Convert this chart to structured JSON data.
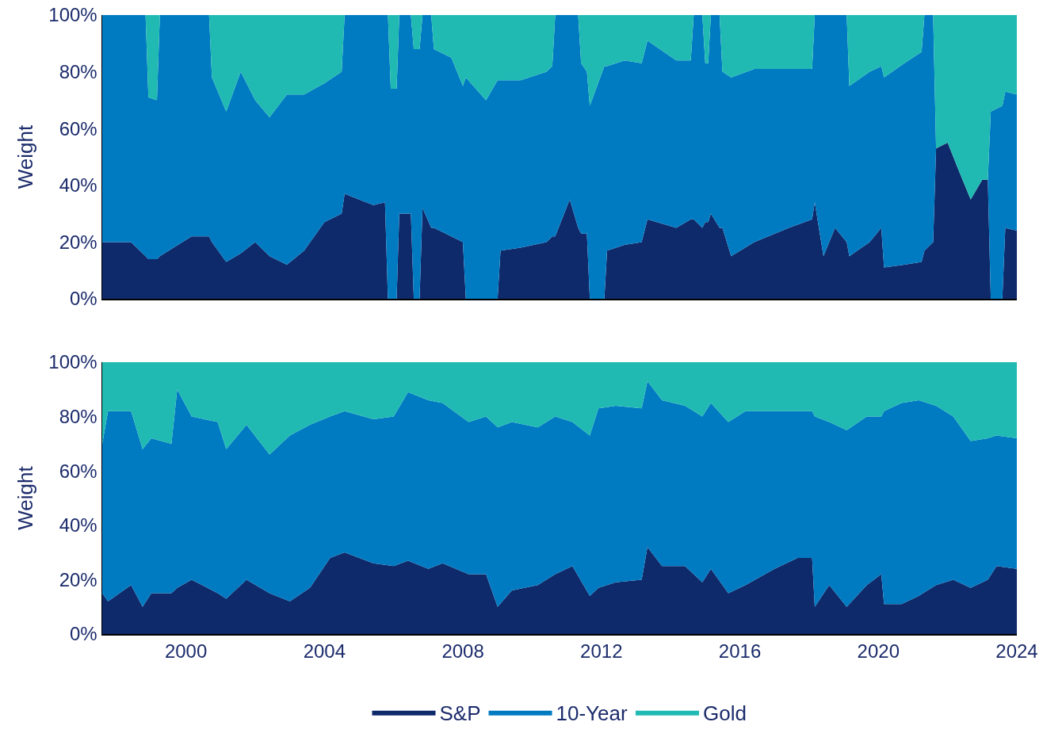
{
  "chart_data": [
    {
      "type": "area",
      "stacked": true,
      "ylabel": "Weight",
      "legend": false,
      "tick_labels": "y",
      "x": [
        "1997-08",
        "1998-06",
        "1998-11",
        "1998-12",
        "1999-03",
        "1999-04",
        "2000-03",
        "2000-09",
        "2000-10",
        "2001-03",
        "2001-08",
        "2002-01",
        "2002-06",
        "2002-12",
        "2003-06",
        "2004-01",
        "2004-07",
        "2004-08",
        "2005-06",
        "2005-10",
        "2005-11",
        "2005-12",
        "2006-02",
        "2006-03",
        "2006-07",
        "2006-08",
        "2006-10",
        "2006-11",
        "2007-02",
        "2007-03",
        "2007-09",
        "2008-01",
        "2008-02",
        "2008-09",
        "2009-01",
        "2009-02",
        "2009-09",
        "2010-06",
        "2010-08",
        "2010-09",
        "2011-02",
        "2011-05",
        "2011-06",
        "2011-08",
        "2011-09",
        "2012-02",
        "2012-03",
        "2012-09",
        "2013-03",
        "2013-05",
        "2014-03",
        "2014-08",
        "2014-09",
        "2014-12",
        "2015-01",
        "2015-02",
        "2015-03",
        "2015-06",
        "2015-07",
        "2015-10",
        "2016-06",
        "2017-06",
        "2018-02",
        "2018-03",
        "2018-06",
        "2018-10",
        "2019-02",
        "2019-03",
        "2019-10",
        "2020-02",
        "2020-03",
        "2020-10",
        "2021-04",
        "2021-05",
        "2021-08",
        "2021-09",
        "2022-01",
        "2022-05",
        "2022-09",
        "2023-01",
        "2023-03",
        "2023-04",
        "2023-08",
        "2023-09",
        "2024-01"
      ],
      "series": [
        {
          "color": "#0f2a6b",
          "values": [
            20,
            20,
            15,
            14,
            14,
            15,
            22,
            22,
            20,
            13,
            16,
            20,
            15,
            12,
            17,
            27,
            30,
            37,
            33,
            34,
            0,
            0,
            0,
            30,
            30,
            0,
            0,
            32,
            25,
            25,
            22,
            20,
            0,
            0,
            0,
            17,
            18,
            20,
            22,
            22,
            35,
            25,
            23,
            23,
            0,
            0,
            17,
            19,
            20,
            28,
            25,
            28,
            28,
            25,
            27,
            27,
            30,
            25,
            25,
            15,
            20,
            25,
            28,
            34,
            15,
            25,
            20,
            15,
            20,
            25,
            11,
            12,
            13,
            17,
            20,
            53,
            55,
            45,
            35,
            42,
            42,
            0,
            0,
            25,
            24
          ]
        },
        {
          "color": "#007bc2",
          "values": [
            80,
            80,
            85,
            57,
            56,
            85,
            78,
            78,
            58,
            53,
            64,
            50,
            49,
            60,
            55,
            49,
            50,
            63,
            67,
            66,
            100,
            74,
            74,
            70,
            70,
            88,
            88,
            68,
            75,
            63,
            63,
            55,
            78,
            70,
            77,
            60,
            59,
            60,
            60,
            78,
            65,
            75,
            60,
            57,
            68,
            82,
            65,
            65,
            63,
            63,
            59,
            56,
            72,
            75,
            56,
            56,
            70,
            75,
            55,
            63,
            61,
            56,
            53,
            66,
            85,
            75,
            80,
            60,
            60,
            57,
            67,
            71,
            74,
            83,
            80,
            0,
            0,
            0,
            0,
            0,
            0,
            66,
            68,
            48,
            48
          ]
        },
        {
          "color": "#20bab2",
          "values": [
            0,
            0,
            0,
            29,
            30,
            0,
            0,
            0,
            22,
            34,
            20,
            30,
            36,
            28,
            28,
            24,
            20,
            0,
            0,
            0,
            0,
            26,
            26,
            0,
            0,
            12,
            12,
            0,
            0,
            12,
            15,
            25,
            22,
            30,
            23,
            23,
            23,
            20,
            18,
            0,
            0,
            0,
            17,
            20,
            32,
            18,
            18,
            16,
            17,
            9,
            16,
            16,
            0,
            0,
            17,
            17,
            0,
            0,
            20,
            22,
            19,
            19,
            19,
            0,
            0,
            0,
            0,
            25,
            20,
            18,
            22,
            17,
            13,
            0,
            0,
            47,
            45,
            55,
            65,
            58,
            58,
            34,
            32,
            27,
            28
          ]
        }
      ],
      "xlim": [
        "1997-08",
        "2024-01"
      ],
      "xticks": [
        "2000",
        "2004",
        "2008",
        "2012",
        "2016",
        "2020",
        "2024"
      ],
      "ylim": [
        0,
        100
      ],
      "yticks": [
        {
          "value": 0,
          "label": "0%"
        },
        {
          "value": 20,
          "label": "20%"
        },
        {
          "value": 40,
          "label": "40%"
        },
        {
          "value": 60,
          "label": "60%"
        },
        {
          "value": 80,
          "label": "80%"
        },
        {
          "value": 100,
          "label": "100%"
        }
      ]
    },
    {
      "type": "area",
      "stacked": true,
      "ylabel": "Weight",
      "legend": "bottom",
      "x": [
        "1997-08",
        "1997-10",
        "1998-06",
        "1998-10",
        "1999-01",
        "1999-08",
        "1999-10",
        "2000-03",
        "2000-12",
        "2001-03",
        "2001-10",
        "2002-06",
        "2003-01",
        "2003-08",
        "2004-03",
        "2004-08",
        "2005-06",
        "2006-01",
        "2006-06",
        "2007-01",
        "2007-06",
        "2008-03",
        "2008-09",
        "2009-01",
        "2009-06",
        "2010-03",
        "2010-09",
        "2011-03",
        "2011-09",
        "2011-12",
        "2012-06",
        "2013-03",
        "2013-05",
        "2013-10",
        "2014-06",
        "2014-12",
        "2015-03",
        "2015-09",
        "2016-03",
        "2017-01",
        "2017-09",
        "2018-02",
        "2018-03",
        "2018-08",
        "2019-02",
        "2019-09",
        "2020-02",
        "2020-03",
        "2020-09",
        "2021-03",
        "2021-09",
        "2022-03",
        "2022-09",
        "2023-03",
        "2023-06",
        "2024-01"
      ],
      "series": [
        {
          "name": "S&P",
          "color": "#0f2a6b",
          "values": [
            15,
            12,
            18,
            10,
            15,
            15,
            17,
            20,
            15,
            13,
            20,
            15,
            12,
            17,
            28,
            30,
            26,
            25,
            27,
            24,
            26,
            22,
            22,
            10,
            16,
            18,
            22,
            25,
            14,
            17,
            19,
            20,
            32,
            25,
            25,
            19,
            24,
            15,
            18,
            24,
            28,
            28,
            10,
            18,
            10,
            18,
            22,
            11,
            11,
            14,
            18,
            20,
            17,
            20,
            25,
            24
          ]
        },
        {
          "name": "10-Year",
          "color": "#007bc2",
          "values": [
            55,
            70,
            64,
            58,
            57,
            55,
            73,
            60,
            63,
            55,
            57,
            51,
            61,
            60,
            52,
            52,
            53,
            55,
            62,
            62,
            59,
            56,
            58,
            66,
            62,
            58,
            58,
            53,
            59,
            66,
            65,
            63,
            61,
            61,
            59,
            61,
            61,
            63,
            64,
            58,
            54,
            54,
            70,
            60,
            65,
            62,
            58,
            71,
            74,
            72,
            66,
            60,
            54,
            52,
            48,
            48
          ]
        },
        {
          "name": "Gold",
          "color": "#20bab2",
          "values": [
            30,
            18,
            18,
            32,
            28,
            30,
            10,
            20,
            22,
            32,
            23,
            34,
            27,
            23,
            20,
            18,
            21,
            20,
            11,
            14,
            15,
            22,
            20,
            24,
            22,
            24,
            20,
            22,
            27,
            17,
            16,
            17,
            7,
            14,
            16,
            20,
            15,
            22,
            18,
            18,
            18,
            18,
            20,
            22,
            25,
            20,
            20,
            18,
            15,
            14,
            16,
            20,
            29,
            28,
            27,
            28
          ]
        }
      ],
      "xlim": [
        "1997-08",
        "2024-01"
      ],
      "xticks": [
        "2000",
        "2004",
        "2008",
        "2012",
        "2016",
        "2020",
        "2024"
      ],
      "ylim": [
        0,
        100
      ],
      "yticks": [
        {
          "value": 0,
          "label": "0%"
        },
        {
          "value": 20,
          "label": "20%"
        },
        {
          "value": 40,
          "label": "40%"
        },
        {
          "value": 60,
          "label": "60%"
        },
        {
          "value": 80,
          "label": "80%"
        },
        {
          "value": 100,
          "label": "100%"
        }
      ]
    }
  ]
}
